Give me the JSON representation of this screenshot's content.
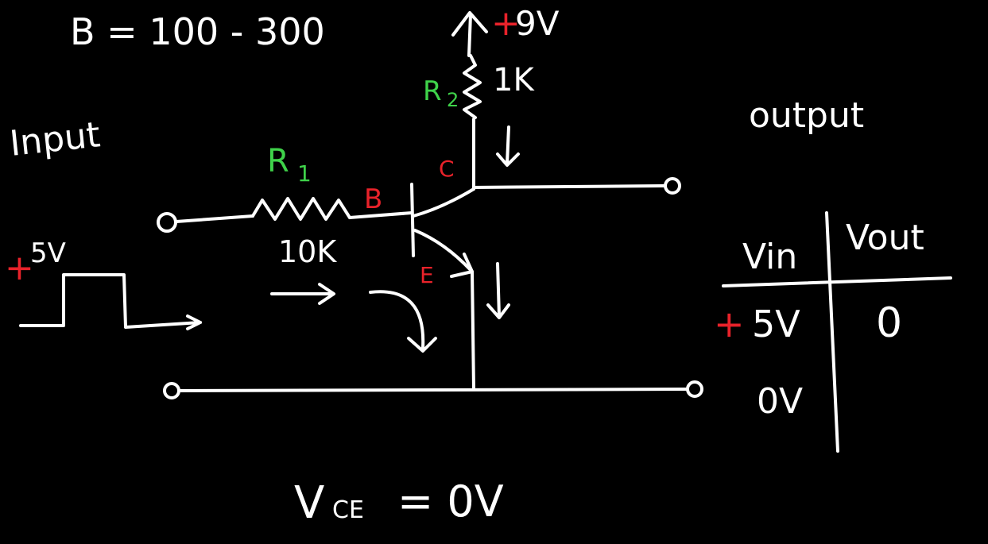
{
  "colors": {
    "background": "#000000",
    "ink": "#ffffff",
    "red": "#e8222a",
    "green": "#3fd24a"
  },
  "header": {
    "beta_eq": "B = 100 - 300"
  },
  "supply": {
    "sign": "+",
    "value": "9V"
  },
  "r2": {
    "label_letter": "R",
    "label_sub": "2",
    "value": "1K"
  },
  "r1": {
    "label_letter": "R",
    "label_sub": "1",
    "value": "10K"
  },
  "transistor": {
    "base": "B",
    "collector": "C",
    "emitter": "E"
  },
  "input": {
    "label": "Input",
    "pulse_sign": "+",
    "pulse_value": "5V"
  },
  "output": {
    "label": "output"
  },
  "truth_table": {
    "header_in": "Vin",
    "header_out": "Vout",
    "row1_sign": "+",
    "row1_in": "5V",
    "row1_out": "0",
    "row2_in": "0V",
    "row2_out": ""
  },
  "footer": {
    "vce_v": "V",
    "vce_sub": "CE",
    "vce_rest": "= 0V"
  }
}
